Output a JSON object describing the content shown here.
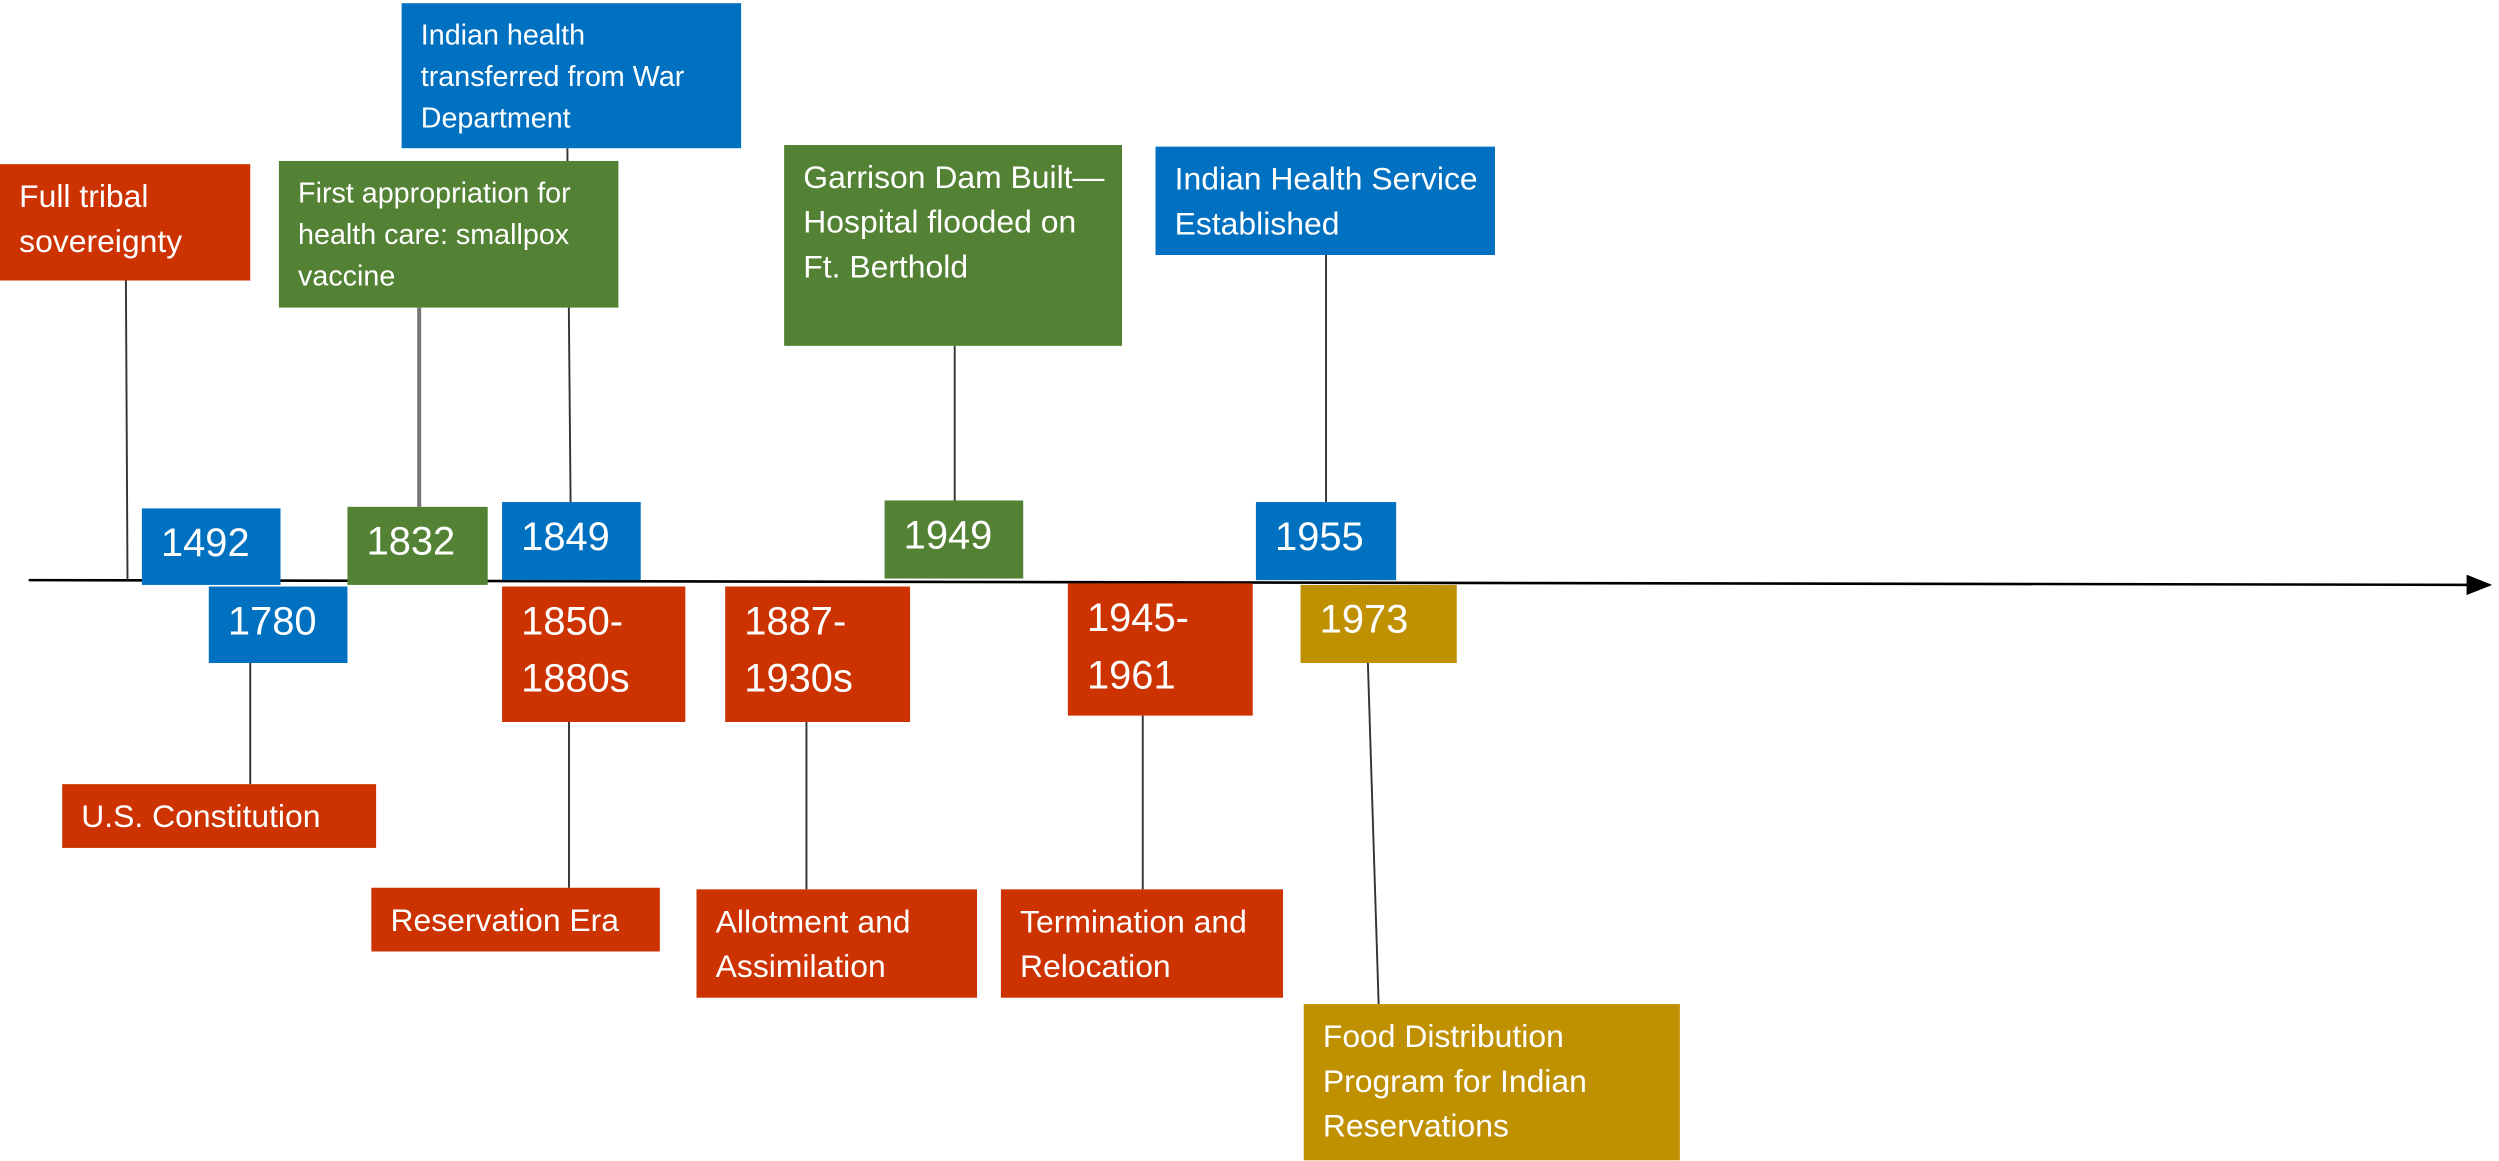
{
  "events": [
    {
      "year": "1492",
      "label": "Full tribal sovereignty"
    },
    {
      "year": "1780",
      "label": "U.S. Constitution"
    },
    {
      "year": "1832",
      "label": "First appropriation for health care: smallpox vaccine"
    },
    {
      "year": "1849",
      "label": "Indian health transferred from War Department"
    },
    {
      "year": "1850-1880s",
      "label": "Reservation Era"
    },
    {
      "year": "1887-1930s",
      "label": "Allotment and Assimilation"
    },
    {
      "year": "1949",
      "label": "Garrison Dam Built—Hospital flooded on Ft. Berthold"
    },
    {
      "year": "1945-1961",
      "label": "Termination and Relocation"
    },
    {
      "year": "1955",
      "label": "Indian Health Service Established"
    },
    {
      "year": "1973",
      "label": "Food Distribution Program for Indian Reservations"
    }
  ]
}
